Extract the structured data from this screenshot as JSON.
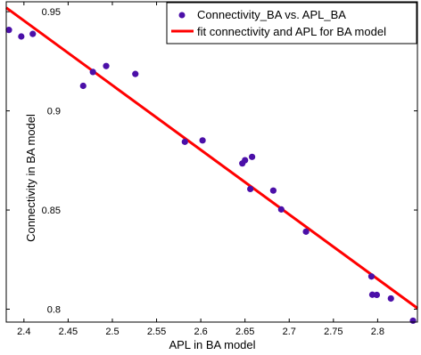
{
  "chart_data": {
    "type": "scatter",
    "xlabel": "APL in BA model",
    "ylabel": "Connectivity in BA model",
    "xlim": [
      2.38,
      2.845
    ],
    "ylim": [
      0.7935,
      0.955
    ],
    "xticks": [
      "2.4",
      "2.45",
      "2.5",
      "2.55",
      "2.6",
      "2.65",
      "2.7",
      "2.75",
      "2.8"
    ],
    "yticks": [
      "0.8",
      "0.85",
      "0.9",
      "0.95"
    ],
    "xtick_values": [
      2.4,
      2.45,
      2.5,
      2.55,
      2.6,
      2.65,
      2.7,
      2.75,
      2.8
    ],
    "ytick_values": [
      0.8,
      0.85,
      0.9,
      0.95
    ],
    "legend_position": "top-right",
    "series": [
      {
        "name": "Connectivity_BA vs. APL_BA",
        "kind": "scatter",
        "color": "#4b0fa8",
        "x": [
          2.383,
          2.397,
          2.41,
          2.467,
          2.478,
          2.493,
          2.526,
          2.582,
          2.602,
          2.647,
          2.65,
          2.656,
          2.658,
          2.682,
          2.691,
          2.719,
          2.793,
          2.794,
          2.799,
          2.815,
          2.84
        ],
        "y": [
          0.9408,
          0.9375,
          0.9388,
          0.9126,
          0.9196,
          0.9226,
          0.9186,
          0.8844,
          0.8851,
          0.8735,
          0.8751,
          0.8606,
          0.8768,
          0.8598,
          0.8503,
          0.8391,
          0.8165,
          0.8073,
          0.8072,
          0.8054,
          0.7942
        ]
      },
      {
        "name": "fit connectivity and APL for BA model",
        "kind": "line",
        "color": "#ff0000",
        "x": [
          2.38,
          2.845
        ],
        "y": [
          0.952,
          0.8005
        ]
      }
    ]
  }
}
